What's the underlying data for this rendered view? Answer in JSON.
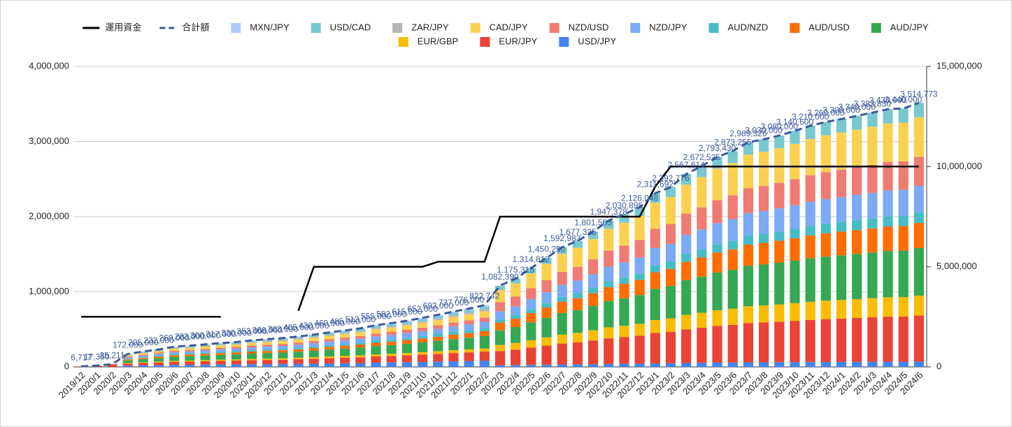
{
  "chart_data": {
    "type": "combo",
    "categories": [
      "2019/12",
      "2020/1",
      "2020/2",
      "2020/3",
      "2020/4",
      "2020/5",
      "2020/6",
      "2020/7",
      "2020/8",
      "2020/9",
      "2020/10",
      "2020/11",
      "2020/12",
      "2021/1",
      "2021/2",
      "2021/3",
      "2021/4",
      "2021/5",
      "2021/6",
      "2021/7",
      "2021/8",
      "2021/9",
      "2021/10",
      "2021/11",
      "2021/12",
      "2022/1",
      "2022/2",
      "2022/3",
      "2022/4",
      "2022/5",
      "2022/6",
      "2022/7",
      "2022/8",
      "2022/9",
      "2022/10",
      "2022/11",
      "2022/12",
      "2023/1",
      "2023/2",
      "2023/3",
      "2023/4",
      "2023/5",
      "2023/6",
      "2023/7",
      "2023/8",
      "2023/9",
      "2023/10",
      "2023/11",
      "2023/12",
      "2024/1",
      "2024/2",
      "2024/3",
      "2024/4",
      "2024/5",
      "2024/6"
    ],
    "ylim": [
      0,
      4000000
    ],
    "yticks": [
      0,
      {
        "value": 1000000,
        "label": "1,000,000"
      },
      {
        "value": 2000000,
        "label": "2,000,000"
      },
      {
        "value": 3000000,
        "label": "3,000,000"
      },
      {
        "value": 4000000,
        "label": "4,000,000"
      }
    ],
    "y2lim": [
      0,
      15000000
    ],
    "y2ticks": [
      0,
      {
        "value": 5000000,
        "label": "5,000,000"
      },
      {
        "value": 10000000,
        "label": "10,000,000"
      },
      {
        "value": 15000000,
        "label": "15,000,000"
      }
    ],
    "grid": true,
    "legend": "top",
    "series": [
      {
        "name": "運用資金",
        "type": "line",
        "axis": "y2",
        "color": "#000000",
        "dashed": false,
        "values": [
          2500000,
          2500000,
          2500000,
          2500000,
          2500000,
          2500000,
          2500000,
          2500000,
          2500000,
          2500000,
          null,
          null,
          null,
          null,
          2800000,
          5000000,
          5000000,
          5000000,
          5000000,
          5000000,
          5000000,
          5000000,
          5000000,
          5250000,
          5250000,
          5250000,
          5250000,
          7500000,
          7500000,
          7500000,
          7500000,
          7500000,
          7500000,
          7500000,
          7500000,
          7500000,
          7500000,
          9000000,
          10000000,
          10000000,
          10000000,
          10000000,
          10000000,
          10000000,
          10000000,
          10000000,
          10000000,
          10000000,
          10000000,
          10000000,
          10000000,
          10000000,
          10000000,
          10000000,
          10000000
        ]
      },
      {
        "name": "合計額",
        "type": "line",
        "color": "#3a5a9c",
        "dashed": true,
        "values": [
          6717,
          17350,
          35211,
          172000,
          205000,
          232000,
          269000,
          283000,
          300000,
          317000,
          330000,
          353000,
          368000,
          383000,
          405000,
          430000,
          460000,
          485000,
          513000,
          555000,
          582000,
          615000,
          652000,
          693000,
          737000,
          776000,
          822742,
          1082390,
          1175315,
          1314812,
          1450290,
          1592983,
          1677325,
          1801503,
          1947378,
          2030895,
          2126048,
          2311692,
          2392776,
          2567614,
          2672525,
          2793430,
          2873255,
          2989326,
          3030000,
          3080000,
          3140600,
          3210000,
          3260000,
          3300000,
          3340000,
          3383830,
          3430000,
          3440000,
          3514773
        ],
        "value_labels": [
          "6,717",
          "17,350",
          "35,211",
          "172,000",
          "205,000",
          "232,000",
          "269,000",
          "283,000",
          "300,000",
          "317,000",
          "330,000",
          "353,000",
          "368,000",
          "383,000",
          "405,000",
          "430,000",
          "460,000",
          "485,000",
          "513,000",
          "555,000",
          "582,000",
          "615,000",
          "652,000",
          "693,000",
          "737,000",
          "776,000",
          "822,742",
          "1,082,390",
          "1,175,315",
          "1,314,812",
          "1,450,290",
          "1,592,983",
          "1,677,325",
          "1,801,503",
          "1,947,378",
          "2,030,895",
          "2,126,048",
          "2,311,692",
          "2,392,776",
          "2,567,614",
          "2,672,525",
          "2,793,430",
          "2,873,255",
          "2,989,326",
          "3,030,000",
          "3,080,000",
          "3,140,600",
          "3,210,000",
          "3,260,000",
          "3,300,000",
          "3,340,000",
          "3,383,830",
          "3,430,000",
          "3,440,000",
          "3,514,773"
        ]
      },
      {
        "name": "MXN/JPY",
        "type": "bar",
        "color": "#aecbfa",
        "values": [
          0,
          0,
          0,
          5000,
          6000,
          7000,
          8000,
          8000,
          9000,
          10000,
          10000,
          11000,
          11000,
          11000,
          12000,
          13000,
          14000,
          15000,
          15000,
          17000,
          17000,
          18000,
          20000,
          21000,
          22000,
          23000,
          25000,
          0,
          0,
          0,
          0,
          0,
          0,
          0,
          0,
          0,
          0,
          0,
          0,
          0,
          0,
          0,
          0,
          0,
          0,
          0,
          0,
          0,
          0,
          0,
          0,
          0,
          0,
          0,
          0
        ]
      },
      {
        "name": "USD/CAD",
        "type": "bar",
        "color": "#78c8d0",
        "values": [
          0,
          0,
          0,
          7000,
          8000,
          9000,
          11000,
          11000,
          12000,
          13000,
          13000,
          14000,
          15000,
          15000,
          16000,
          17000,
          18000,
          19000,
          21000,
          22000,
          23000,
          25000,
          26000,
          28000,
          29000,
          31000,
          33000,
          60000,
          65000,
          72000,
          80000,
          88000,
          92000,
          99000,
          107000,
          112000,
          117000,
          127000,
          132000,
          141000,
          147000,
          154000,
          158000,
          164000,
          167000,
          169000,
          173000,
          177000,
          179000,
          182000,
          184000,
          186000,
          189000,
          189000,
          193000
        ]
      },
      {
        "name": "ZAR/JPY",
        "type": "bar",
        "color": "#b7b7b7",
        "values": [
          0,
          0,
          0,
          5000,
          6000,
          7000,
          8000,
          8000,
          9000,
          10000,
          10000,
          11000,
          11000,
          11000,
          12000,
          13000,
          14000,
          15000,
          15000,
          17000,
          17000,
          18000,
          20000,
          21000,
          22000,
          23000,
          25000,
          0,
          0,
          0,
          0,
          0,
          0,
          0,
          0,
          0,
          0,
          0,
          0,
          0,
          0,
          0,
          0,
          0,
          0,
          0,
          0,
          0,
          0,
          0,
          0,
          0,
          0,
          0,
          0
        ]
      },
      {
        "name": "CAD/JPY",
        "type": "bar",
        "color": "#fcd04f",
        "values": [
          0,
          0,
          0,
          17000,
          21000,
          23000,
          27000,
          28000,
          30000,
          32000,
          33000,
          35000,
          37000,
          38000,
          41000,
          43000,
          46000,
          49000,
          51000,
          56000,
          58000,
          62000,
          65000,
          69000,
          74000,
          78000,
          82000,
          162000,
          176000,
          197000,
          218000,
          239000,
          252000,
          270000,
          292000,
          305000,
          319000,
          347000,
          359000,
          385000,
          401000,
          419000,
          431000,
          448000,
          455000,
          462000,
          471000,
          482000,
          489000,
          495000,
          501000,
          508000,
          515000,
          516000,
          527000
        ]
      },
      {
        "name": "NZD/USD",
        "type": "bar",
        "color": "#f07b72",
        "values": [
          0,
          0,
          0,
          12000,
          14000,
          16000,
          19000,
          20000,
          21000,
          22000,
          23000,
          25000,
          26000,
          27000,
          28000,
          30000,
          32000,
          34000,
          36000,
          39000,
          41000,
          43000,
          46000,
          49000,
          52000,
          54000,
          58000,
          119000,
          129000,
          145000,
          160000,
          175000,
          184000,
          198000,
          214000,
          223000,
          234000,
          254000,
          263000,
          282000,
          294000,
          307000,
          316000,
          329000,
          333000,
          339000,
          346000,
          353000,
          359000,
          363000,
          367000,
          372000,
          377000,
          378000,
          387000
        ]
      },
      {
        "name": "NZD/JPY",
        "type": "bar",
        "color": "#7baaf7",
        "values": [
          0,
          0,
          0,
          17000,
          21000,
          23000,
          27000,
          28000,
          30000,
          32000,
          33000,
          35000,
          37000,
          38000,
          41000,
          43000,
          46000,
          49000,
          51000,
          56000,
          58000,
          62000,
          65000,
          69000,
          74000,
          78000,
          82000,
          108000,
          118000,
          132000,
          145000,
          159000,
          168000,
          180000,
          195000,
          203000,
          213000,
          231000,
          239000,
          257000,
          267000,
          279000,
          287000,
          299000,
          303000,
          308000,
          314000,
          321000,
          326000,
          330000,
          334000,
          338000,
          343000,
          344000,
          352000
        ]
      },
      {
        "name": "AUD/NZD",
        "type": "bar",
        "color": "#46bdc6",
        "values": [
          0,
          0,
          0,
          9000,
          10000,
          12000,
          13000,
          14000,
          15000,
          16000,
          17000,
          18000,
          18000,
          19000,
          20000,
          22000,
          23000,
          24000,
          26000,
          28000,
          29000,
          31000,
          33000,
          35000,
          37000,
          39000,
          41000,
          43000,
          47000,
          53000,
          58000,
          64000,
          67000,
          72000,
          78000,
          81000,
          85000,
          92000,
          96000,
          103000,
          107000,
          112000,
          115000,
          120000,
          121000,
          123000,
          126000,
          128000,
          130000,
          132000,
          134000,
          135000,
          137000,
          138000,
          141000
        ]
      },
      {
        "name": "AUD/USD",
        "type": "bar",
        "color": "#ff6d01",
        "values": [
          0,
          0,
          0,
          14000,
          16000,
          19000,
          22000,
          23000,
          24000,
          25000,
          26000,
          28000,
          29000,
          31000,
          32000,
          34000,
          37000,
          39000,
          41000,
          44000,
          47000,
          49000,
          52000,
          55000,
          59000,
          62000,
          66000,
          103000,
          112000,
          125000,
          138000,
          151000,
          159000,
          171000,
          185000,
          193000,
          202000,
          220000,
          227000,
          244000,
          254000,
          265000,
          273000,
          284000,
          288000,
          293000,
          298000,
          305000,
          310000,
          314000,
          317000,
          321000,
          326000,
          327000,
          334000
        ]
      },
      {
        "name": "AUD/JPY",
        "type": "bar",
        "color": "#34a853",
        "values": [
          0,
          0,
          0,
          34000,
          41000,
          46000,
          54000,
          57000,
          60000,
          63000,
          66000,
          71000,
          74000,
          77000,
          81000,
          86000,
          92000,
          97000,
          103000,
          111000,
          116000,
          123000,
          130000,
          139000,
          147000,
          155000,
          165000,
          195000,
          212000,
          237000,
          261000,
          287000,
          302000,
          324000,
          350000,
          366000,
          383000,
          416000,
          431000,
          462000,
          481000,
          503000,
          517000,
          538000,
          545000,
          554000,
          565000,
          578000,
          587000,
          594000,
          601000,
          609000,
          617000,
          619000,
          633000
        ]
      },
      {
        "name": "EUR/GBP",
        "type": "bar",
        "color": "#fbbc04",
        "values": [
          0,
          0,
          0,
          9000,
          10000,
          12000,
          13000,
          14000,
          15000,
          16000,
          17000,
          18000,
          18000,
          19000,
          20000,
          22000,
          23000,
          24000,
          26000,
          28000,
          29000,
          31000,
          33000,
          35000,
          37000,
          39000,
          41000,
          81000,
          88000,
          99000,
          109000,
          119000,
          126000,
          135000,
          146000,
          152000,
          159000,
          173000,
          179000,
          193000,
          200000,
          209000,
          215000,
          224000,
          227000,
          231000,
          236000,
          241000,
          245000,
          248000,
          251000,
          254000,
          257000,
          258000,
          264000
        ]
      },
      {
        "name": "EUR/JPY",
        "type": "bar",
        "color": "#ea4335",
        "values": [
          6717,
          17350,
          35211,
          26000,
          31000,
          35000,
          40000,
          42000,
          45000,
          48000,
          50000,
          53000,
          55000,
          57000,
          61000,
          65000,
          69000,
          73000,
          77000,
          83000,
          87000,
          92000,
          98000,
          104000,
          111000,
          116000,
          123000,
          189000,
          206000,
          230000,
          254000,
          279000,
          293000,
          315000,
          341000,
          355000,
          372000,
          405000,
          419000,
          449000,
          468000,
          489000,
          503000,
          523000,
          530000,
          539000,
          550000,
          562000,
          571000,
          578000,
          585000,
          592000,
          600000,
          602000,
          615000
        ]
      },
      {
        "name": "USD/JPY",
        "type": "bar",
        "color": "#4285f4",
        "values": [
          0,
          0,
          0,
          17000,
          21000,
          23000,
          27000,
          28000,
          30000,
          32000,
          33000,
          35000,
          37000,
          38000,
          41000,
          43000,
          46000,
          49000,
          51000,
          56000,
          58000,
          62000,
          65000,
          69000,
          74000,
          78000,
          82000,
          22000,
          24000,
          26000,
          29000,
          32000,
          34000,
          36000,
          39000,
          41000,
          43000,
          46000,
          48000,
          51000,
          53000,
          56000,
          57000,
          60000,
          61000,
          62000,
          63000,
          64000,
          65000,
          66000,
          67000,
          68000,
          69000,
          69000,
          70000
        ]
      }
    ]
  }
}
